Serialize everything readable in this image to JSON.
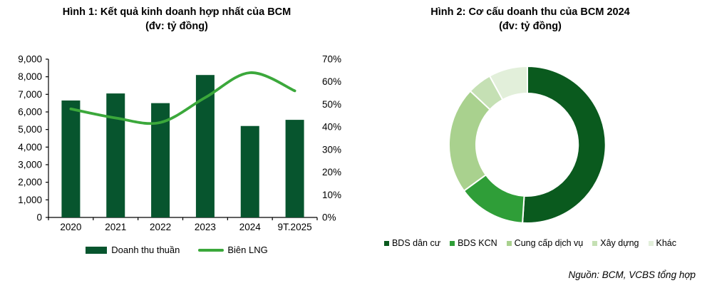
{
  "source_note": "Nguồn: BCM, VCBS tổng hợp",
  "chart_data": [
    {
      "type": "bar",
      "title": "Hình 1: Kết quả kinh doanh hợp nhất của BCM",
      "subtitle": "(đv: tỷ đồng)",
      "categories": [
        "2020",
        "2021",
        "2022",
        "2023",
        "2024",
        "9T.2025"
      ],
      "series": [
        {
          "name": "Doanh thu thuần",
          "type": "bar",
          "axis": "left",
          "color": "#07552E",
          "values": [
            6650,
            7050,
            6500,
            8100,
            5200,
            5550
          ]
        },
        {
          "name": "Biên LNG",
          "type": "line",
          "axis": "right",
          "color": "#3BA83B",
          "values_pct": [
            48,
            44,
            42,
            53,
            64,
            56
          ]
        }
      ],
      "left_axis": {
        "min": 0,
        "max": 9000,
        "tick_labels": [
          "0",
          "1,000",
          "2,000",
          "3,000",
          "4,000",
          "5,000",
          "6,000",
          "7,000",
          "8,000",
          "9,000"
        ]
      },
      "right_axis": {
        "min_pct": 0,
        "max_pct": 70,
        "tick_labels": [
          "0%",
          "10%",
          "20%",
          "30%",
          "40%",
          "50%",
          "60%",
          "70%"
        ]
      },
      "legend_position": "bottom",
      "grid": false
    },
    {
      "type": "pie",
      "title": "Hình 2: Cơ cấu doanh thu của BCM 2024",
      "subtitle": "(đv: tỷ đồng)",
      "donut": true,
      "inner_radius_ratio": 0.655,
      "segments": [
        {
          "label": "BDS dân cư",
          "pct": 51,
          "color": "#0A5A1E"
        },
        {
          "label": "BDS KCN",
          "pct": 14,
          "color": "#2F9E38"
        },
        {
          "label": "Cung cấp dịch vụ",
          "pct": 22,
          "color": "#A9D18E"
        },
        {
          "label": "Xây dựng",
          "pct": 5,
          "color": "#C5E0B4"
        },
        {
          "label": "Khác",
          "pct": 8,
          "color": "#E2EFDA"
        }
      ],
      "legend_position": "bottom"
    }
  ]
}
